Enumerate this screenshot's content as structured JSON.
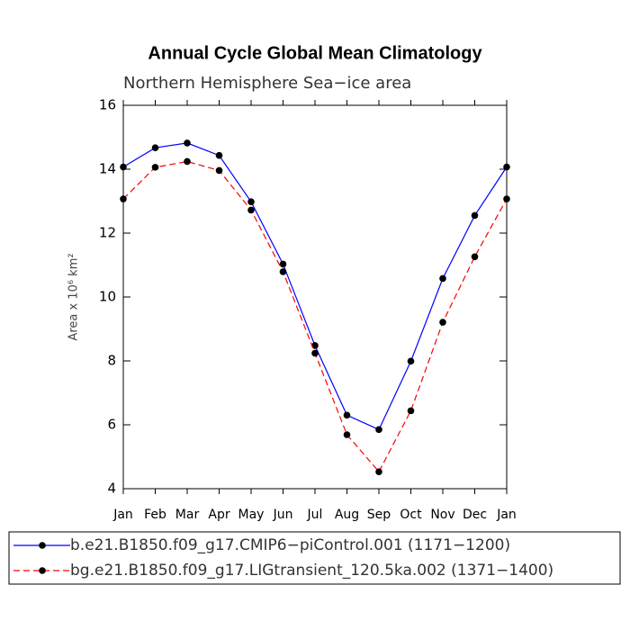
{
  "chart_data": {
    "type": "line",
    "title": "Annual Cycle Global Mean Climatology",
    "subtitle": "Northern Hemisphere Sea−ice area",
    "y_label": "Area x 10⁶ km²",
    "categories": [
      "Jan",
      "Feb",
      "Mar",
      "Apr",
      "May",
      "Jun",
      "Jul",
      "Aug",
      "Sep",
      "Oct",
      "Nov",
      "Dec",
      "Jan"
    ],
    "series": [
      {
        "name": "b.e21.B1850.f09_g17.CMIP6−piControl.001 (1171−1200)",
        "color": "#0000ff",
        "dash": false,
        "values": [
          14.07,
          14.67,
          14.82,
          14.43,
          12.98,
          11.03,
          8.48,
          6.3,
          5.85,
          7.99,
          10.58,
          12.55,
          14.07
        ]
      },
      {
        "name": "bg.e21.B1850.f09_g17.LIGtransient_120.5ka.002 (1371−1400)",
        "color": "#ff0000",
        "dash": true,
        "values": [
          13.07,
          14.06,
          14.24,
          13.96,
          12.72,
          10.79,
          8.24,
          5.69,
          4.53,
          6.44,
          9.21,
          11.26,
          13.07
        ]
      }
    ],
    "ylim": [
      4,
      16
    ],
    "yticks": [
      4,
      6,
      8,
      10,
      12,
      14,
      16
    ]
  }
}
